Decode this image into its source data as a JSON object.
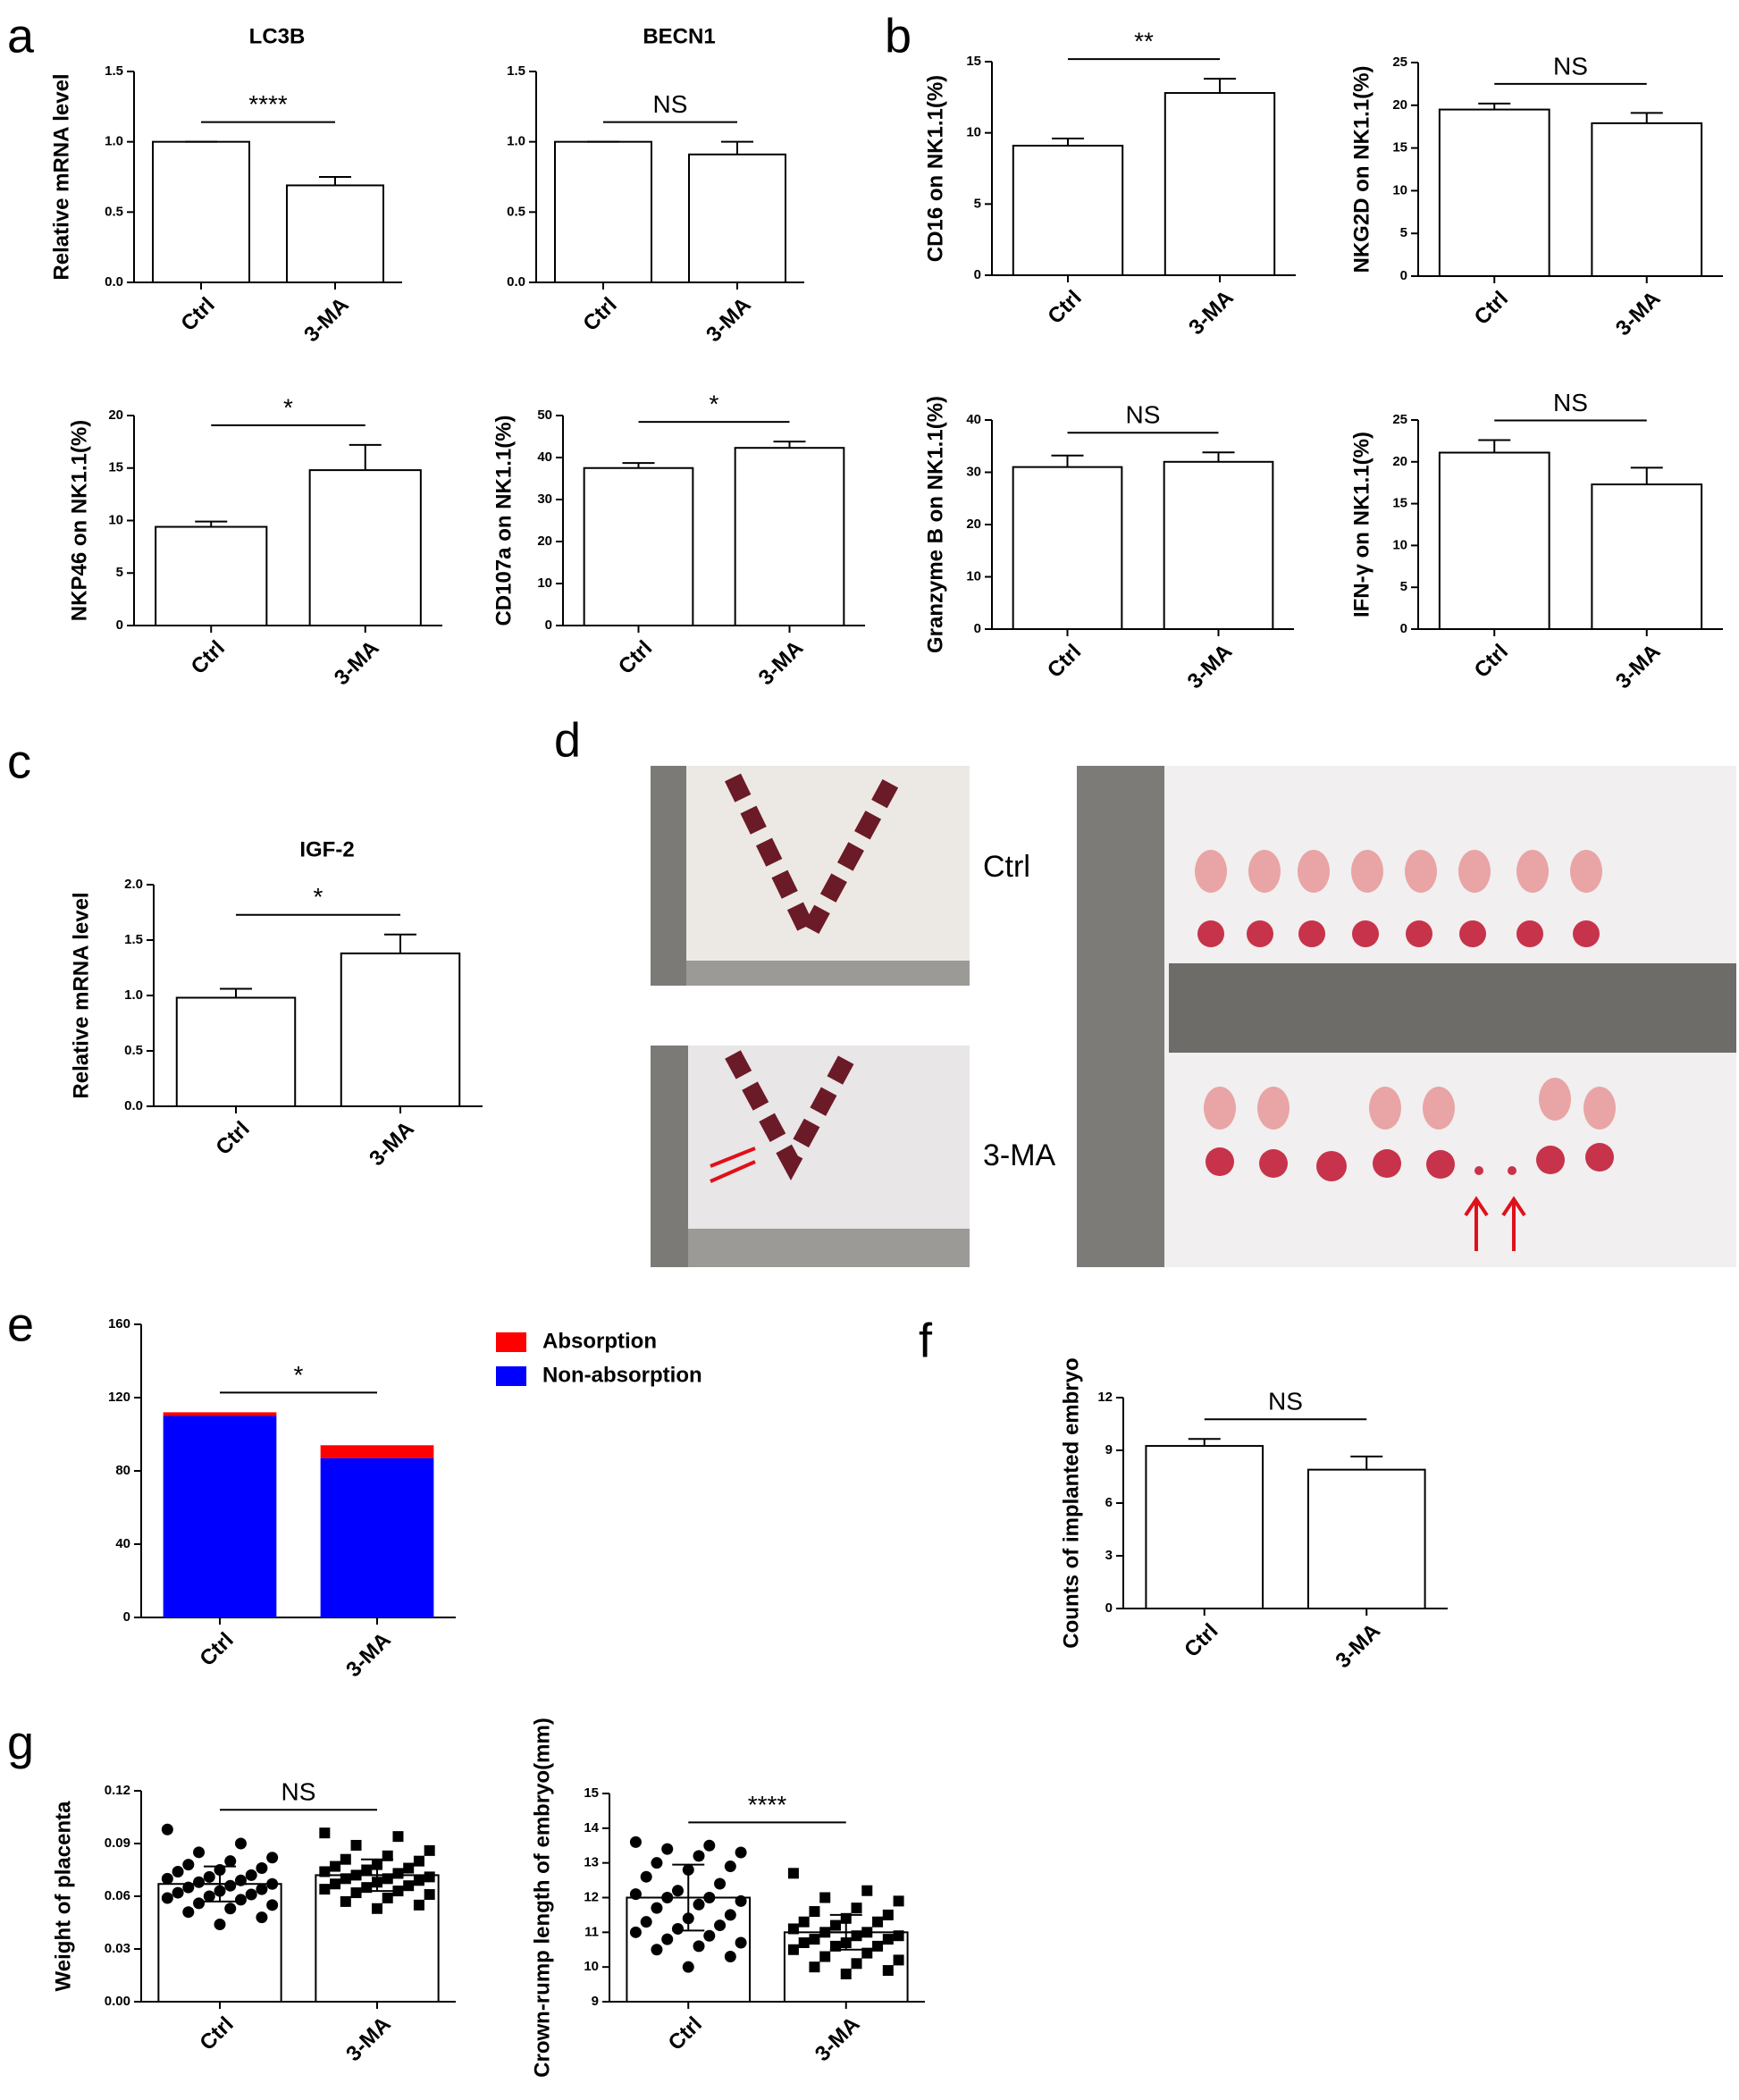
{
  "chart_data": [
    {
      "type": "bar",
      "panel": "a",
      "title": "LC3B",
      "ylabel": "Relative mRNA level",
      "categories": [
        "Ctrl",
        "3-MA"
      ],
      "values": [
        1.0,
        0.69
      ],
      "errors": [
        0,
        0.06
      ],
      "ylim": [
        0,
        1.5
      ],
      "yticks": [
        {
          "value": 0,
          "label": "0.0"
        },
        {
          "value": 0.5,
          "label": "0.5"
        },
        {
          "value": 1,
          "label": "1.0"
        },
        {
          "value": 1.5,
          "label": "1.5"
        }
      ],
      "significance": "****",
      "color": "#ffffff"
    },
    {
      "type": "bar",
      "title": "BECN1",
      "categories": [
        "Ctrl",
        "3-MA"
      ],
      "values": [
        1.0,
        0.91
      ],
      "errors": [
        0,
        0.09
      ],
      "ylim": [
        0,
        1.5
      ],
      "yticks": [
        {
          "value": 0,
          "label": "0.0"
        },
        {
          "value": 0.5,
          "label": "0.5"
        },
        {
          "value": 1,
          "label": "1.0"
        },
        {
          "value": 1.5,
          "label": "1.5"
        }
      ],
      "significance": "NS",
      "color": "#ffffff"
    },
    {
      "type": "bar",
      "panel": "b",
      "ylabel": "CD16 on NK1.1(%)",
      "categories": [
        "Ctrl",
        "3-MA"
      ],
      "values": [
        9.1,
        12.8
      ],
      "errors": [
        0.5,
        1.0
      ],
      "ylim": [
        0,
        15
      ],
      "yticks": [
        0,
        5,
        10,
        15
      ],
      "significance": "**",
      "color": "#ffffff"
    },
    {
      "type": "bar",
      "ylabel": "NKG2D on NK1.1(%)",
      "categories": [
        "Ctrl",
        "3-MA"
      ],
      "values": [
        19.5,
        17.9
      ],
      "errors": [
        0.7,
        1.2
      ],
      "ylim": [
        0,
        25
      ],
      "yticks": [
        0,
        5,
        10,
        15,
        20,
        25
      ],
      "significance": "NS",
      "color": "#ffffff"
    },
    {
      "type": "bar",
      "ylabel": "NKP46 on NK1.1(%)",
      "categories": [
        "Ctrl",
        "3-MA"
      ],
      "values": [
        9.4,
        14.8
      ],
      "errors": [
        0.5,
        2.4
      ],
      "ylim": [
        0,
        20
      ],
      "yticks": [
        0,
        5,
        10,
        15,
        20
      ],
      "significance": "*",
      "color": "#ffffff"
    },
    {
      "type": "bar",
      "ylabel": "CD107a on NK1.1(%)",
      "categories": [
        "Ctrl",
        "3-MA"
      ],
      "values": [
        37.5,
        42.3
      ],
      "errors": [
        1.2,
        1.5
      ],
      "ylim": [
        0,
        50
      ],
      "yticks": [
        0,
        10,
        20,
        30,
        40,
        50
      ],
      "significance": "*",
      "color": "#ffffff"
    },
    {
      "type": "bar",
      "ylabel": "Granzyme B on NK1.1(%)",
      "categories": [
        "Ctrl",
        "3-MA"
      ],
      "values": [
        31,
        32
      ],
      "errors": [
        2.2,
        1.8
      ],
      "ylim": [
        0,
        40
      ],
      "yticks": [
        0,
        10,
        20,
        30,
        40
      ],
      "significance": "NS",
      "color": "#ffffff"
    },
    {
      "type": "bar",
      "ylabel": "IFN-γ on NK1.1(%)",
      "categories": [
        "Ctrl",
        "3-MA"
      ],
      "values": [
        21.1,
        17.3
      ],
      "errors": [
        1.5,
        2.0
      ],
      "ylim": [
        0,
        25
      ],
      "yticks": [
        0,
        5,
        10,
        15,
        20,
        25
      ],
      "significance": "NS",
      "color": "#ffffff"
    },
    {
      "type": "bar",
      "panel": "c",
      "title": "IGF-2",
      "ylabel": "Relative mRNA level",
      "categories": [
        "Ctrl",
        "3-MA"
      ],
      "values": [
        0.98,
        1.38
      ],
      "errors": [
        0.08,
        0.17
      ],
      "ylim": [
        0,
        2
      ],
      "yticks": [
        {
          "value": 0,
          "label": "0.0"
        },
        {
          "value": 0.5,
          "label": "0.5"
        },
        {
          "value": 1,
          "label": "1.0"
        },
        {
          "value": 1.5,
          "label": "1.5"
        },
        {
          "value": 2,
          "label": "2.0"
        }
      ],
      "significance": "*",
      "color": "#ffffff"
    },
    {
      "type": "stacked_bar",
      "panel": "e",
      "categories": [
        "Ctrl",
        "3-MA"
      ],
      "series": [
        {
          "name": "Non-absorption",
          "color": "#0000ff",
          "values": [
            110,
            87
          ]
        },
        {
          "name": "Absorption",
          "color": "#ff0000",
          "values": [
            2,
            7
          ]
        }
      ],
      "ylim": [
        0,
        160
      ],
      "yticks": [
        0,
        40,
        80,
        120,
        160
      ],
      "significance": "*"
    },
    {
      "type": "bar",
      "panel": "f",
      "ylabel": "Counts of implanted embryo",
      "categories": [
        "Ctrl",
        "3-MA"
      ],
      "values": [
        9.25,
        7.9
      ],
      "errors": [
        0.4,
        0.75
      ],
      "ylim": [
        0,
        12
      ],
      "yticks": [
        0,
        3,
        6,
        9,
        12
      ],
      "significance": "NS",
      "color": "#ffffff"
    },
    {
      "type": "dotbar",
      "panel": "g",
      "ylabel": "Weight of placenta",
      "categories": [
        "Ctrl",
        "3-MA"
      ],
      "values": [
        0.067,
        0.072
      ],
      "errors": [
        0.01,
        0.009
      ],
      "markers": [
        "circle",
        "square"
      ],
      "points": [
        [
          0.098,
          0.09,
          0.085,
          0.082,
          0.08,
          0.078,
          0.076,
          0.075,
          0.074,
          0.072,
          0.071,
          0.07,
          0.069,
          0.068,
          0.067,
          0.066,
          0.065,
          0.064,
          0.063,
          0.062,
          0.061,
          0.06,
          0.059,
          0.058,
          0.056,
          0.055,
          0.053,
          0.051,
          0.048,
          0.044
        ],
        [
          0.096,
          0.094,
          0.089,
          0.086,
          0.083,
          0.081,
          0.08,
          0.078,
          0.077,
          0.076,
          0.075,
          0.074,
          0.073,
          0.072,
          0.071,
          0.07,
          0.07,
          0.069,
          0.068,
          0.067,
          0.066,
          0.065,
          0.064,
          0.063,
          0.062,
          0.061,
          0.059,
          0.057,
          0.055,
          0.053
        ]
      ],
      "ylim": [
        0,
        0.12
      ],
      "yticks": [
        {
          "value": 0,
          "label": "0.00"
        },
        {
          "value": 0.03,
          "label": "0.03"
        },
        {
          "value": 0.06,
          "label": "0.06"
        },
        {
          "value": 0.09,
          "label": "0.09"
        },
        {
          "value": 0.12,
          "label": "0.12"
        }
      ],
      "significance": "NS",
      "color": "#ffffff"
    },
    {
      "type": "dotbar",
      "ylabel": "Crown-rump length of embryo(mm)",
      "categories": [
        "Ctrl",
        "3-MA"
      ],
      "values": [
        12.0,
        11.0
      ],
      "errors": [
        0.95,
        0.5
      ],
      "markers": [
        "circle",
        "square"
      ],
      "points": [
        [
          13.6,
          13.5,
          13.4,
          13.3,
          13.2,
          13.0,
          12.9,
          12.8,
          12.6,
          12.4,
          12.2,
          12.1,
          12.0,
          12.0,
          11.9,
          11.8,
          11.7,
          11.5,
          11.4,
          11.3,
          11.2,
          11.1,
          11.0,
          10.9,
          10.8,
          10.7,
          10.6,
          10.5,
          10.3,
          10.0
        ],
        [
          12.7,
          12.2,
          12.0,
          11.9,
          11.7,
          11.6,
          11.5,
          11.4,
          11.3,
          11.3,
          11.2,
          11.1,
          11.0,
          11.0,
          10.9,
          10.9,
          10.8,
          10.8,
          10.7,
          10.7,
          10.6,
          10.6,
          10.5,
          10.4,
          10.3,
          10.2,
          10.1,
          10.0,
          9.9,
          9.8
        ]
      ],
      "ylim": [
        9,
        15
      ],
      "yticks": [
        9,
        10,
        11,
        12,
        13,
        14,
        15
      ],
      "significance": "****",
      "color": "#ffffff"
    }
  ],
  "panel_d": {
    "letter": "d",
    "groups": [
      "Ctrl",
      "3-MA"
    ]
  }
}
